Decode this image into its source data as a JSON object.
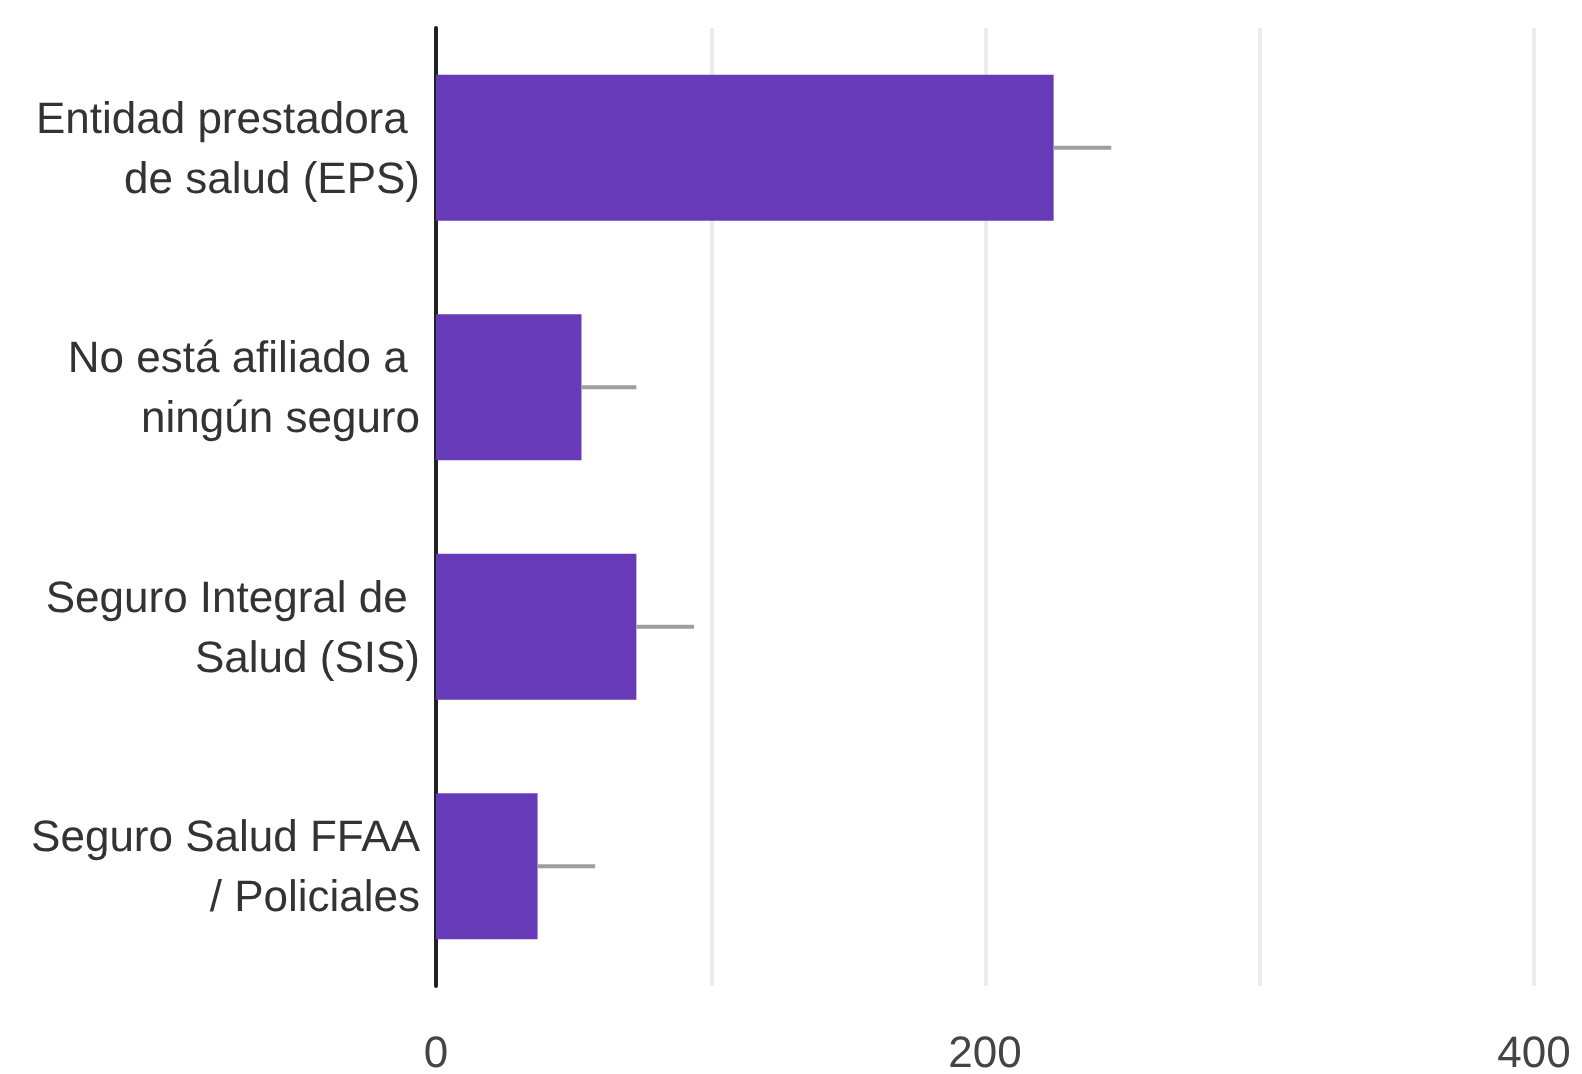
{
  "chart_data": {
    "type": "bar",
    "orientation": "horizontal",
    "categories": [
      "Entidad prestadora de salud (EPS)",
      "No está afiliado a ningún seguro",
      "Seguro Integral de Salud (SIS)",
      "Seguro Salud FFAA/ Policiales"
    ],
    "values": [
      225,
      53,
      73,
      37
    ],
    "errors": [
      [
        225,
        246
      ],
      [
        53,
        73
      ],
      [
        73,
        94
      ],
      [
        37,
        58
      ]
    ],
    "color": "#673ab7",
    "xlim": [
      0,
      400
    ],
    "xticks": [
      0,
      {
        "value": 100,
        "label": null
      },
      200,
      {
        "value": 300,
        "label": null
      },
      400
    ],
    "grid": "x"
  }
}
